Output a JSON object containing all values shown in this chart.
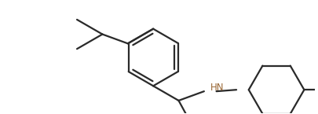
{
  "background": "#ffffff",
  "line_color": "#2a2a2a",
  "hn_color": "#996633",
  "line_width": 1.6,
  "figsize": [
    4.05,
    1.45
  ],
  "dpi": 100,
  "hn_text": "HN",
  "hn_fontsize": 8.5
}
